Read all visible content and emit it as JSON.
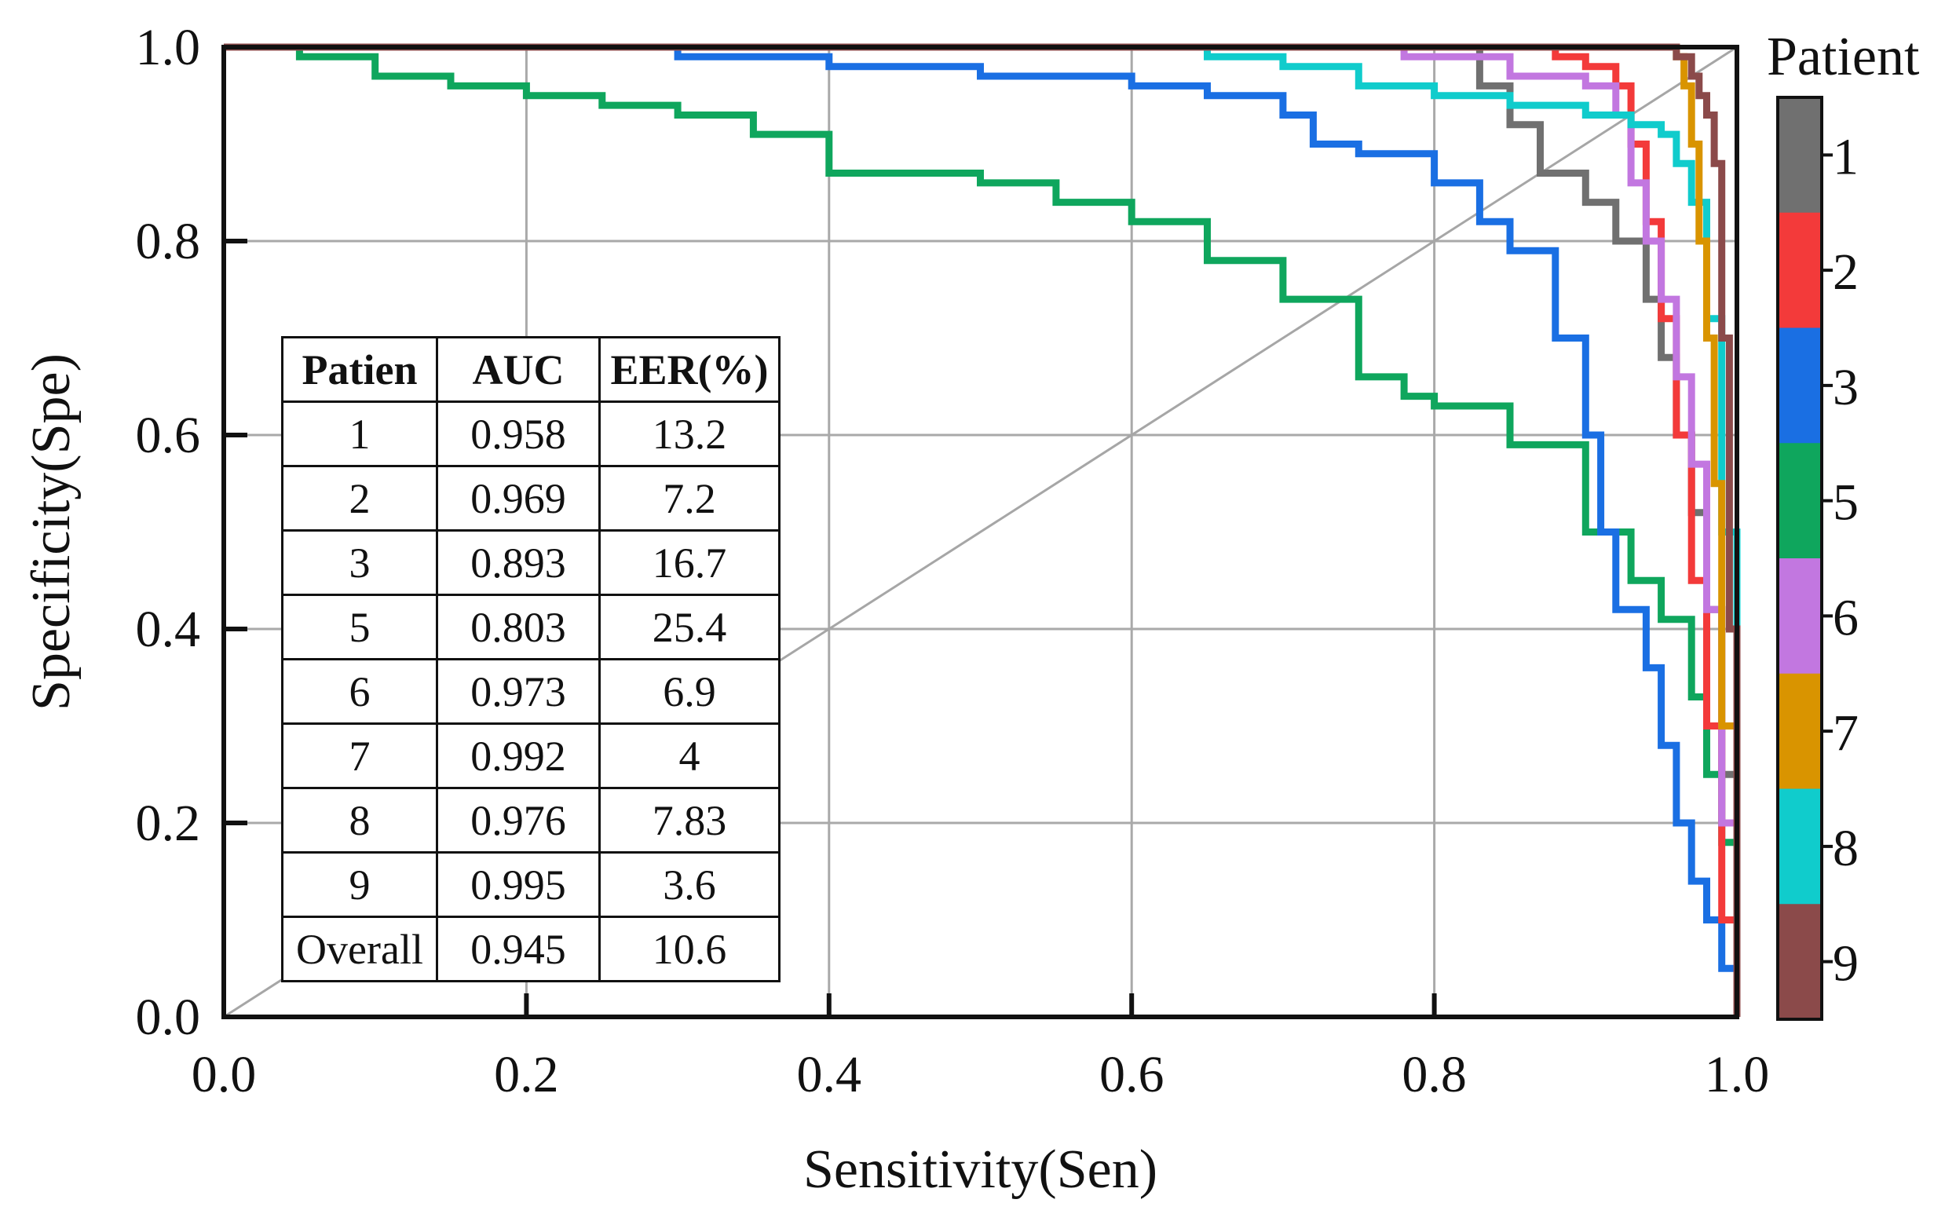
{
  "chart_data": {
    "type": "line",
    "title": "",
    "xlabel": "Sensitivity(Sen)",
    "ylabel": "Specificity(Spe)",
    "xlim": [
      0.0,
      1.0
    ],
    "ylim": [
      0.0,
      1.0
    ],
    "xticks": [
      "0.0",
      "0.2",
      "0.4",
      "0.6",
      "0.8",
      "1.0"
    ],
    "yticks": [
      "0.0",
      "0.2",
      "0.4",
      "0.6",
      "0.8",
      "1.0"
    ],
    "grid": true,
    "reference_line": {
      "name": "chance-diagonal",
      "x": [
        0,
        1
      ],
      "y": [
        0,
        1
      ],
      "color": "#a6a6a6"
    },
    "colorbar": {
      "title": "Patient",
      "entries": [
        {
          "label": "1",
          "color": "#707070"
        },
        {
          "label": "2",
          "color": "#f33a3a"
        },
        {
          "label": "3",
          "color": "#1a6fe3"
        },
        {
          "label": "5",
          "color": "#0fa65d"
        },
        {
          "label": "6",
          "color": "#c277e0"
        },
        {
          "label": "7",
          "color": "#d99400"
        },
        {
          "label": "8",
          "color": "#10cccc"
        },
        {
          "label": "9",
          "color": "#8b4a4a"
        }
      ]
    },
    "series": [
      {
        "name": "5",
        "color": "#0fa65d",
        "x": [
          0.0,
          0.05,
          0.1,
          0.15,
          0.2,
          0.25,
          0.3,
          0.35,
          0.4,
          0.5,
          0.55,
          0.6,
          0.65,
          0.7,
          0.75,
          0.78,
          0.8,
          0.85,
          0.9,
          0.93,
          0.95,
          0.97,
          0.98,
          0.99,
          1.0
        ],
        "y": [
          1.0,
          0.99,
          0.97,
          0.96,
          0.95,
          0.94,
          0.93,
          0.91,
          0.87,
          0.86,
          0.84,
          0.82,
          0.78,
          0.74,
          0.66,
          0.64,
          0.63,
          0.59,
          0.5,
          0.45,
          0.41,
          0.33,
          0.25,
          0.18,
          0.0
        ]
      },
      {
        "name": "3",
        "color": "#1a6fe3",
        "x": [
          0.25,
          0.3,
          0.4,
          0.5,
          0.6,
          0.65,
          0.7,
          0.72,
          0.75,
          0.8,
          0.83,
          0.85,
          0.88,
          0.9,
          0.91,
          0.92,
          0.94,
          0.95,
          0.96,
          0.97,
          0.98,
          0.99,
          1.0
        ],
        "y": [
          1.0,
          0.99,
          0.98,
          0.97,
          0.96,
          0.95,
          0.93,
          0.9,
          0.89,
          0.86,
          0.82,
          0.79,
          0.7,
          0.6,
          0.5,
          0.42,
          0.36,
          0.28,
          0.2,
          0.14,
          0.1,
          0.05,
          0.0
        ]
      },
      {
        "name": "1",
        "color": "#707070",
        "x": [
          0.5,
          0.8,
          0.83,
          0.85,
          0.87,
          0.9,
          0.92,
          0.94,
          0.95,
          0.96,
          0.97,
          0.98,
          0.99,
          1.0
        ],
        "y": [
          1.0,
          1.0,
          0.96,
          0.92,
          0.87,
          0.84,
          0.8,
          0.74,
          0.68,
          0.6,
          0.52,
          0.42,
          0.25,
          0.0
        ]
      },
      {
        "name": "2",
        "color": "#f33a3a",
        "x": [
          0.5,
          0.85,
          0.88,
          0.9,
          0.92,
          0.93,
          0.94,
          0.95,
          0.96,
          0.97,
          0.98,
          0.99,
          1.0
        ],
        "y": [
          1.0,
          1.0,
          0.99,
          0.98,
          0.96,
          0.9,
          0.82,
          0.72,
          0.6,
          0.45,
          0.3,
          0.1,
          0.0
        ]
      },
      {
        "name": "6",
        "color": "#c277e0",
        "x": [
          0.5,
          0.7,
          0.78,
          0.85,
          0.9,
          0.92,
          0.93,
          0.94,
          0.95,
          0.96,
          0.97,
          0.98,
          0.99,
          1.0
        ],
        "y": [
          1.0,
          1.0,
          0.99,
          0.97,
          0.96,
          0.93,
          0.86,
          0.8,
          0.74,
          0.66,
          0.57,
          0.42,
          0.2,
          0.0
        ]
      },
      {
        "name": "8",
        "color": "#10cccc",
        "x": [
          0.55,
          0.65,
          0.7,
          0.75,
          0.8,
          0.85,
          0.9,
          0.93,
          0.95,
          0.96,
          0.97,
          0.98,
          0.99,
          1.0
        ],
        "y": [
          1.0,
          0.99,
          0.98,
          0.96,
          0.95,
          0.94,
          0.93,
          0.92,
          0.91,
          0.88,
          0.84,
          0.72,
          0.5,
          0.0
        ]
      },
      {
        "name": "7",
        "color": "#d99400",
        "x": [
          0.5,
          0.95,
          0.96,
          0.965,
          0.97,
          0.975,
          0.98,
          0.985,
          0.99,
          1.0
        ],
        "y": [
          1.0,
          1.0,
          0.99,
          0.96,
          0.9,
          0.8,
          0.7,
          0.55,
          0.3,
          0.0
        ]
      },
      {
        "name": "9",
        "color": "#8b4a4a",
        "x": [
          0.0,
          0.95,
          0.96,
          0.97,
          0.975,
          0.98,
          0.985,
          0.99,
          0.995,
          1.0
        ],
        "y": [
          1.0,
          1.0,
          0.99,
          0.97,
          0.95,
          0.93,
          0.88,
          0.7,
          0.4,
          0.0
        ]
      }
    ]
  },
  "table": {
    "headers": [
      "Patien",
      "AUC",
      "EER(%)"
    ],
    "rows": [
      {
        "patient": "1",
        "auc": "0.958",
        "eer": "13.2"
      },
      {
        "patient": "2",
        "auc": "0.969",
        "eer": "7.2"
      },
      {
        "patient": "3",
        "auc": "0.893",
        "eer": "16.7"
      },
      {
        "patient": "5",
        "auc": "0.803",
        "eer": "25.4"
      },
      {
        "patient": "6",
        "auc": "0.973",
        "eer": "6.9"
      },
      {
        "patient": "7",
        "auc": "0.992",
        "eer": "4"
      },
      {
        "patient": "8",
        "auc": "0.976",
        "eer": "7.83"
      },
      {
        "patient": "9",
        "auc": "0.995",
        "eer": "3.6"
      },
      {
        "patient": "Overall",
        "auc": "0.945",
        "eer": "10.6"
      }
    ]
  }
}
